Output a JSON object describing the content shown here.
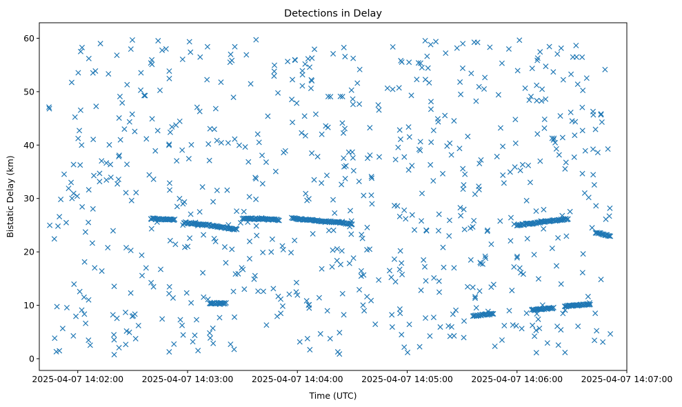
{
  "chart_data": {
    "type": "scatter",
    "title": "Detections in Delay",
    "xlabel": "Time (UTC)",
    "ylabel": "Bistatic Delay (km)",
    "marker": "x",
    "marker_color": "#1f77b4",
    "grid": false,
    "legend": "none",
    "x_ticks": [
      "2025-04-07 14:02:00",
      "2025-04-07 14:03:00",
      "2025-04-07 14:04:00",
      "2025-04-07 14:05:00",
      "2025-04-07 14:06:00",
      "2025-04-07 14:07:00"
    ],
    "y_ticks": [
      0,
      10,
      20,
      30,
      40,
      50,
      60
    ],
    "xlim": [
      "2025-04-07 14:01:39",
      "2025-04-07 14:07:00"
    ],
    "ylim": [
      -2.2,
      62.9
    ],
    "x_range_of_points": [
      "2025-04-07 14:01:43",
      "2025-04-07 14:06:51"
    ],
    "y_range_of_points": [
      0.7,
      59.8
    ],
    "structured_tracks": [
      {
        "x_start": "2025-04-07 14:02:40",
        "x_end": "2025-04-07 14:02:53",
        "y_start": 26.2,
        "y_end": 26.0
      },
      {
        "x_start": "2025-04-07 14:02:58",
        "x_end": "2025-04-07 14:03:12",
        "y_start": 25.5,
        "y_end": 25.0
      },
      {
        "x_start": "2025-04-07 14:03:13",
        "x_end": "2025-04-07 14:03:27",
        "y_start": 24.9,
        "y_end": 24.2
      },
      {
        "x_start": "2025-04-07 14:03:30",
        "x_end": "2025-04-07 14:03:50",
        "y_start": 26.3,
        "y_end": 26.0
      },
      {
        "x_start": "2025-04-07 14:03:57",
        "x_end": "2025-04-07 14:04:17",
        "y_start": 26.3,
        "y_end": 25.6
      },
      {
        "x_start": "2025-04-07 14:04:17",
        "x_end": "2025-04-07 14:04:30",
        "y_start": 25.7,
        "y_end": 25.2
      },
      {
        "x_start": "2025-04-07 14:03:12",
        "x_end": "2025-04-07 14:03:21",
        "y_start": 10.4,
        "y_end": 10.4
      },
      {
        "x_start": "2025-04-07 14:05:36",
        "x_end": "2025-04-07 14:05:47",
        "y_start": 8.0,
        "y_end": 8.4
      },
      {
        "x_start": "2025-04-07 14:06:08",
        "x_end": "2025-04-07 14:06:20",
        "y_start": 9.1,
        "y_end": 9.5
      },
      {
        "x_start": "2025-04-07 14:06:26",
        "x_end": "2025-04-07 14:06:40",
        "y_start": 9.8,
        "y_end": 10.2
      },
      {
        "x_start": "2025-04-07 14:06:00",
        "x_end": "2025-04-07 14:06:28",
        "y_start": 25.0,
        "y_end": 26.2
      },
      {
        "x_start": "2025-04-07 14:06:43",
        "x_end": "2025-04-07 14:06:51",
        "y_start": 23.6,
        "y_end": 23.0
      }
    ],
    "scattered_points_approx_count": 700
  }
}
